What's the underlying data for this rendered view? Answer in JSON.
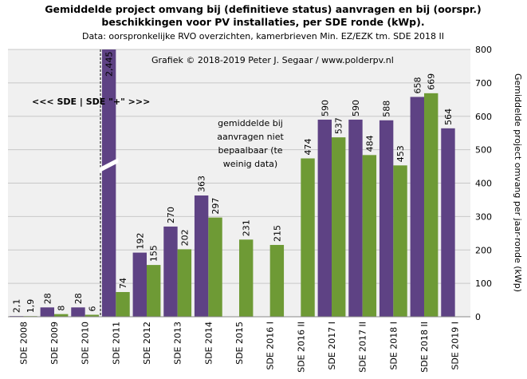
{
  "chart_data": {
    "type": "bar",
    "title": [
      "Gemiddelde project omvang bij (definitieve status) aanvragen en bij (oorspr.)",
      "beschikkingen voor PV installaties, per SDE ronde (kWp)."
    ],
    "subtitle": "Data: oorspronkelijke RVO overzichten, kamerbrieven Min. EZ/EZK tm. SDE 2018 II",
    "credit": "Grafiek © 2018-2019 Peter J. Segaar / www.polderpv.nl",
    "annotation_sde": "<<< SDE | SDE \"+\" >>>",
    "annotation_note": [
      "gemiddelde bij",
      "aanvragen niet",
      "bepaalbaar (te",
      "weinig data)"
    ],
    "y_label": "Gemiddelde project omvang per jaar-ronde (kWp)",
    "categories": [
      "SDE 2008",
      "SDE 2009",
      "SDE 2010",
      "SDE 2011",
      "SDE 2012",
      "SDE 2013",
      "SDE 2014",
      "SDE 2015",
      "SDE 2016 I",
      "SDE 2016 II",
      "SDE 2017 I",
      "SDE 2017 II",
      "SDE 2018 I",
      "SDE 2018 II",
      "SDE 2019 I"
    ],
    "series": [
      {
        "color": "#5e4284",
        "label_color": "#7d5aa8",
        "values": [
          2.1,
          28,
          28,
          2445,
          192,
          270,
          363,
          null,
          null,
          null,
          590,
          590,
          588,
          658,
          564
        ],
        "value_labels": [
          "2,1",
          "28",
          "28",
          "2,445",
          "192",
          "270",
          "363",
          null,
          null,
          null,
          "590",
          "590",
          "588",
          "658",
          "564"
        ]
      },
      {
        "color": "#6e9a35",
        "label_color": "#4f6f24",
        "values": [
          1.9,
          8,
          6,
          74,
          155,
          202,
          297,
          231,
          215,
          474,
          537,
          484,
          453,
          669,
          null
        ],
        "value_labels": [
          "1,9",
          "8",
          "6",
          "74",
          "155",
          "202",
          "297",
          "231",
          "215",
          "474",
          "537",
          "484",
          "453",
          "669",
          null
        ]
      }
    ],
    "ylim": [
      0,
      800
    ],
    "yticks": [
      0,
      100,
      200,
      300,
      400,
      500,
      600,
      700,
      800
    ],
    "grid": true
  }
}
